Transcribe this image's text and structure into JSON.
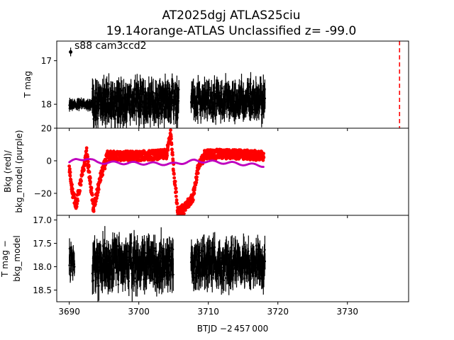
{
  "figure": {
    "title_line1": "AT2025dgj  ATLAS25ciu",
    "title_line2": "19.14orange-ATLAS Unclassified z= -99.0",
    "annotation": "s88 cam3ccd2",
    "xlabel": "BTJD −2 457 000"
  },
  "chart_data": [
    {
      "type": "scatter",
      "panel": "top",
      "ylabel": "T mag",
      "xlim": [
        3688.2,
        3738.8
      ],
      "ylim": [
        18.55,
        16.55
      ],
      "y_inverted": true,
      "x_ticks": [
        3690,
        3700,
        3710,
        3720,
        3730
      ],
      "y_ticks": [
        17,
        18
      ],
      "y_tick_labels": [
        "17",
        "18"
      ],
      "series": [
        {
          "color": "#000000",
          "error_bars": true,
          "segments": [
            {
              "x_range": [
                3690.0,
                3693.3
              ],
              "y_center": 18.0,
              "scatter": 0.12,
              "note": ""
            },
            {
              "x_range": [
                3693.3,
                3705.8
              ],
              "y_center": 17.95,
              "scatter": 0.45,
              "note": ""
            },
            {
              "x_range": [
                3707.5,
                3718.2
              ],
              "y_center": 17.9,
              "scatter": 0.4,
              "note": ""
            }
          ],
          "outliers": [
            {
              "x": 3690.2,
              "y": 16.8
            }
          ]
        }
      ],
      "vline": {
        "x": 3737.5,
        "color": "#ff0000",
        "style": "dashed"
      }
    },
    {
      "type": "scatter",
      "panel": "middle",
      "ylabel": "Bkg (red)/\nbkg_model (purple)",
      "ylabel_lines": [
        "Bkg (red)/",
        "bkg_model (purple)"
      ],
      "xlim": [
        3688.2,
        3738.8
      ],
      "ylim": [
        -33.5,
        20
      ],
      "y_ticks": [
        -20,
        0,
        20
      ],
      "y_tick_labels": [
        "−20",
        "0",
        "20"
      ],
      "series": [
        {
          "name": "Bkg",
          "color": "#ff0000",
          "points_summary": [
            [
              3690.0,
              -5
            ],
            [
              3690.5,
              -20
            ],
            [
              3691.0,
              -27
            ],
            [
              3692.5,
              5
            ],
            [
              3693.5,
              -30
            ],
            [
              3694.5,
              -10
            ],
            [
              3695.5,
              3
            ],
            [
              3700,
              3
            ],
            [
              3704,
              4
            ],
            [
              3704.6,
              17
            ],
            [
              3705.0,
              -5
            ],
            [
              3705.6,
              -30
            ],
            [
              3706.5,
              -30
            ],
            [
              3707.8,
              -22
            ],
            [
              3708.5,
              -5
            ],
            [
              3709.5,
              4
            ],
            [
              3714,
              4
            ],
            [
              3718,
              3
            ]
          ]
        },
        {
          "name": "bkg_model",
          "color": "#bf00bf",
          "points_summary": [
            [
              3690.0,
              -1
            ],
            [
              3691.0,
              0.5
            ],
            [
              3692.5,
              1.5
            ],
            [
              3694,
              -1
            ],
            [
              3700,
              -1.5
            ],
            [
              3705,
              -2
            ],
            [
              3708,
              0
            ],
            [
              3712,
              -1
            ],
            [
              3718,
              -3
            ]
          ]
        }
      ]
    },
    {
      "type": "scatter",
      "panel": "bottom",
      "ylabel": "T mag −\nbkg_model",
      "ylabel_lines": [
        "T mag −",
        "bkg_model"
      ],
      "xlim": [
        3688.2,
        3738.8
      ],
      "ylim": [
        18.75,
        16.9
      ],
      "y_inverted": true,
      "y_ticks": [
        17.0,
        17.5,
        18.0,
        18.5
      ],
      "y_tick_labels": [
        "17.0",
        "17.5",
        "18.0",
        "18.5"
      ],
      "series": [
        {
          "color": "#000000",
          "error_bars": true,
          "segments": [
            {
              "x_range": [
                3690.0,
                3690.8
              ],
              "y_center": 17.9,
              "scatter": 0.35,
              "note": ""
            },
            {
              "x_range": [
                3693.3,
                3705.0
              ],
              "y_center": 17.95,
              "scatter": 0.5,
              "note": ""
            },
            {
              "x_range": [
                3707.5,
                3718.2
              ],
              "y_center": 17.95,
              "scatter": 0.45,
              "note": ""
            }
          ]
        }
      ]
    }
  ],
  "colors": {
    "axes": "#000000",
    "data": "#000000",
    "bkg": "#ff0000",
    "bkg_model": "#bf00bf",
    "vline": "#ff0000"
  }
}
